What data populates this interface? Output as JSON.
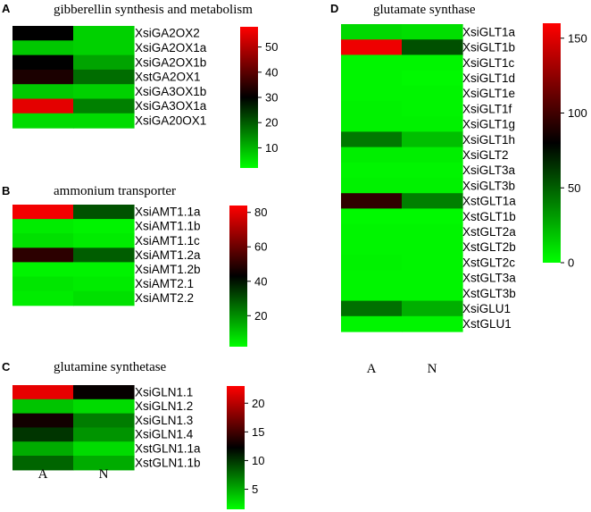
{
  "chart_data": [
    {
      "type": "heatmap",
      "panel": "A",
      "title": "gibberellin synthesis and metabolism",
      "columns": [],
      "rows": [
        "XsiGA2OX2",
        "XsiGA2OX1a",
        "XsiGA2OX1b",
        "XstGA2OX1",
        "XsiGA3OX1b",
        "XsiGA3OX1a",
        "XsiGA20OX1"
      ],
      "values": [
        [
          30,
          7
        ],
        [
          8,
          7
        ],
        [
          30,
          12
        ],
        [
          33,
          18
        ],
        [
          8,
          7
        ],
        [
          55,
          16
        ],
        [
          6,
          6
        ]
      ],
      "colorbar": {
        "ticks": [
          10,
          20,
          30,
          40,
          50
        ],
        "min": 2,
        "max": 58
      },
      "colors": {
        "low": "#00ff00",
        "mid": "#000000",
        "high": "#ff0000"
      }
    },
    {
      "type": "heatmap",
      "panel": "B",
      "title": "ammonium transporter",
      "columns": [],
      "rows": [
        "XsiAMT1.1a",
        "XsiAMT1.1b",
        "XsiAMT1.1c",
        "XsiAMT1.2a",
        "XsiAMT1.2b",
        "XsiAMT2.1",
        "XsiAMT2.2"
      ],
      "values": [
        [
          82,
          30
        ],
        [
          5,
          4
        ],
        [
          7,
          5
        ],
        [
          50,
          28
        ],
        [
          4,
          4
        ],
        [
          6,
          5
        ],
        [
          5,
          7
        ]
      ],
      "colorbar": {
        "ticks": [
          20,
          40,
          60,
          80
        ],
        "min": 2,
        "max": 84
      },
      "colors": {
        "low": "#00ff00",
        "mid": "#000000",
        "high": "#ff0000"
      }
    },
    {
      "type": "heatmap",
      "panel": "C",
      "title": "glutamine synthetase",
      "columns": [
        "A",
        "N"
      ],
      "rows": [
        "XsiGLN1.1",
        "XsiGLN1.2",
        "XsiGLN1.3",
        "XsiGLN1.4",
        "XstGLN1.1a",
        "XstGLN1.1b"
      ],
      "values": [
        [
          22,
          12.5
        ],
        [
          4,
          3
        ],
        [
          13,
          7
        ],
        [
          10,
          6
        ],
        [
          5,
          3
        ],
        [
          8,
          5
        ]
      ],
      "colorbar": {
        "ticks": [
          5,
          10,
          15,
          20
        ],
        "min": 1.5,
        "max": 23
      },
      "colors": {
        "low": "#00ff00",
        "mid": "#000000",
        "high": "#ff0000"
      }
    },
    {
      "type": "heatmap",
      "panel": "D",
      "title": "glutamate synthase",
      "columns": [
        "A",
        "N"
      ],
      "rows": [
        "XsiGLT1a",
        "XsiGLT1b",
        "XsiGLT1c",
        "XsiGLT1d",
        "XsiGLT1e",
        "XsiGLT1f",
        "XsiGLT1g",
        "XsiGLT1h",
        "XsiGLT2",
        "XsiGLT3a",
        "XsiGLT3b",
        "XstGLT1a",
        "XstGLT1b",
        "XstGLT2a",
        "XstGLT2b",
        "XstGLT2c",
        "XstGLT3a",
        "XstGLT3b",
        "XsiGLU1",
        "XstGLU1"
      ],
      "values": [
        [
          12,
          10
        ],
        [
          155,
          55
        ],
        [
          3,
          3
        ],
        [
          3,
          2
        ],
        [
          3,
          3
        ],
        [
          4,
          3
        ],
        [
          4,
          4
        ],
        [
          42,
          20
        ],
        [
          5,
          5
        ],
        [
          3,
          3
        ],
        [
          4,
          4
        ],
        [
          95,
          40
        ],
        [
          2,
          2
        ],
        [
          3,
          3
        ],
        [
          3,
          3
        ],
        [
          4,
          3
        ],
        [
          3,
          3
        ],
        [
          3,
          3
        ],
        [
          45,
          25
        ],
        [
          3,
          3
        ]
      ],
      "colorbar": {
        "ticks": [
          0,
          50,
          100,
          150
        ],
        "min": 0,
        "max": 160
      },
      "colors": {
        "low": "#00ff00",
        "mid": "#000000",
        "high": "#ff0000"
      }
    }
  ]
}
